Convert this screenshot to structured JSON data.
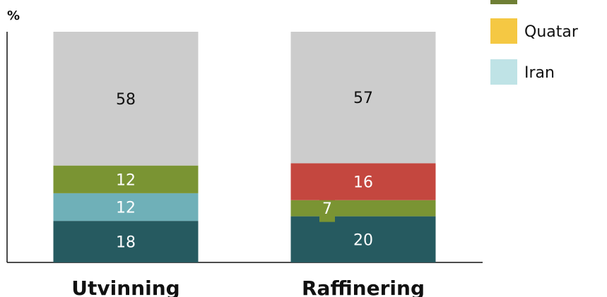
{
  "chart_data": {
    "type": "bar",
    "stacked": true,
    "title": "",
    "ylabel": "%",
    "ylim": [
      0,
      100
    ],
    "categories": [
      "Utvinning",
      "Raffinering"
    ],
    "series": [
      {
        "name": "",
        "color": "#265a60",
        "values": [
          18,
          20
        ]
      },
      {
        "name": "Iran",
        "color": "#6fb0b8",
        "values": [
          12,
          null
        ]
      },
      {
        "name": "",
        "color": "#7a9433",
        "values": [
          12,
          7
        ]
      },
      {
        "name": "Quatar",
        "color": "#f5c843",
        "values": [
          null,
          null
        ]
      },
      {
        "name": "",
        "color": "#c4473f",
        "values": [
          null,
          16
        ]
      },
      {
        "name": "",
        "color": "#cccccc",
        "values": [
          58,
          57
        ]
      }
    ],
    "legend_position": "top-right",
    "legend_entries": [
      {
        "name": "Quatar",
        "color": "#f5c843"
      },
      {
        "name": "Iran",
        "color": "#bfe3e6"
      }
    ]
  }
}
